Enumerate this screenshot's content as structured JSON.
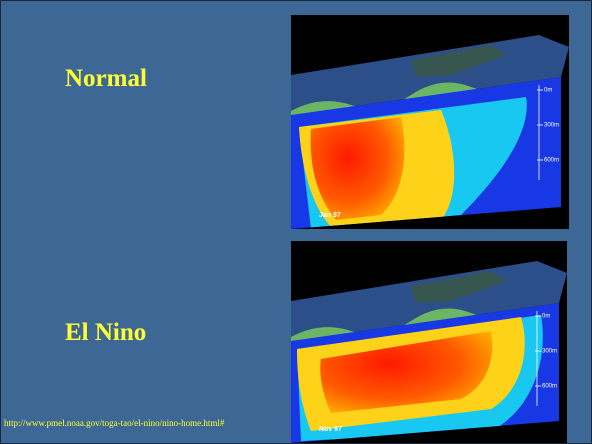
{
  "slide": {
    "labels": [
      "Normal",
      "El Nino"
    ],
    "images": [
      {
        "date": "Jan 97",
        "depths": [
          "0m",
          "300m",
          "600m"
        ]
      },
      {
        "date": "Nov 97",
        "depths": [
          "0m",
          "300m",
          "600m"
        ]
      }
    ],
    "source_url": "http://www.pmel.noaa.gov/toga-tao/el-nino/nino-home.html#"
  }
}
